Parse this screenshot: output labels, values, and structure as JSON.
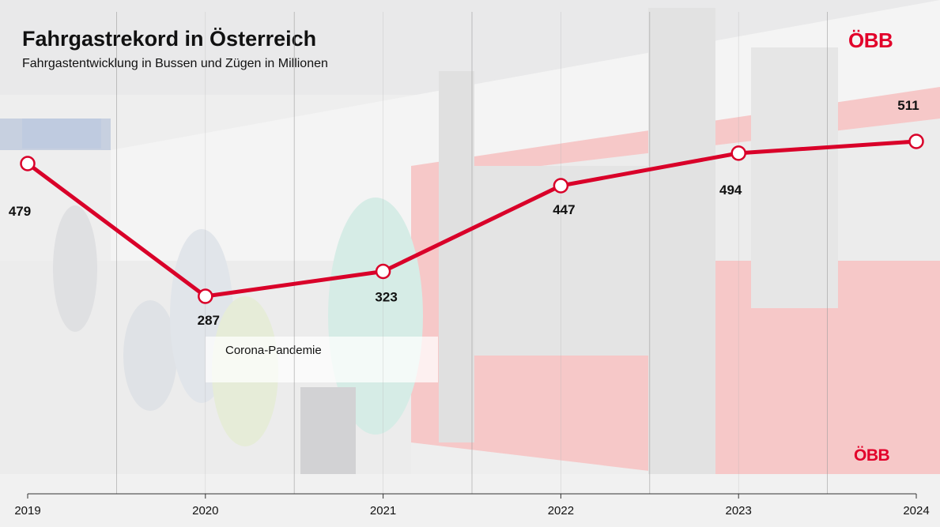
{
  "header": {
    "title": "Fahrgastrekord in Österreich",
    "subtitle": "Fahrgastentwicklung in Bussen und Zügen in Millionen"
  },
  "logo": {
    "text": "ÖBB"
  },
  "annotation": {
    "text": "Corona-Pandemie",
    "year": "2020"
  },
  "colors": {
    "line": "#d90029",
    "text": "#111111",
    "brand": "#e2002a"
  },
  "chart_data": {
    "type": "line",
    "title": "Fahrgastrekord in Österreich",
    "subtitle": "Fahrgastentwicklung in Bussen und Zügen in Millionen",
    "xlabel": "",
    "ylabel": "",
    "categories": [
      "2019",
      "2020",
      "2021",
      "2022",
      "2023",
      "2024"
    ],
    "values": [
      479,
      287,
      323,
      447,
      494,
      511
    ],
    "ylim": [
      0,
      600
    ],
    "grid": "vertical",
    "legend": "none",
    "annotations": [
      {
        "x": "2020",
        "text": "Corona-Pandemie"
      }
    ]
  }
}
